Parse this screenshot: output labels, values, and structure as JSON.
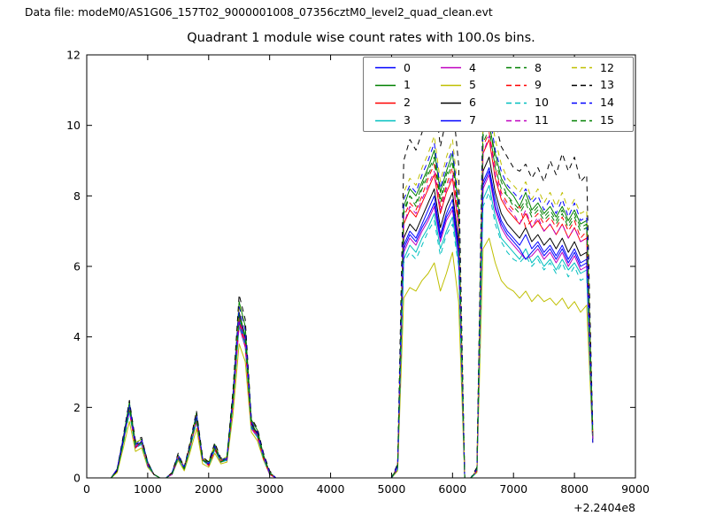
{
  "header": {
    "data_file": "Data file: modeM0/AS1G06_157T02_9000001008_07356cztM0_level2_quad_clean.evt"
  },
  "chart_data": {
    "type": "line",
    "title": "Quadrant 1 module wise count rates with 100.0s bins.",
    "xlabel": "",
    "ylabel": "",
    "x_offset_label": "+2.2404e8",
    "xlim": [
      0,
      9000
    ],
    "ylim": [
      0,
      12
    ],
    "xticks": [
      0,
      1000,
      2000,
      3000,
      4000,
      5000,
      6000,
      7000,
      8000,
      9000
    ],
    "yticks": [
      0,
      2,
      4,
      6,
      8,
      10,
      12
    ],
    "grid": false,
    "legend_position": "upper right",
    "legend_columns": 4,
    "x": [
      400,
      500,
      600,
      700,
      800,
      900,
      1000,
      1100,
      1200,
      1300,
      1400,
      1500,
      1600,
      1700,
      1800,
      1900,
      2000,
      2100,
      2200,
      2300,
      2400,
      2500,
      2600,
      2700,
      2800,
      2900,
      3000,
      3100,
      5000,
      5100,
      5200,
      5300,
      5400,
      5500,
      5600,
      5700,
      5800,
      5900,
      6000,
      6100,
      6200,
      6300,
      6400,
      6500,
      6600,
      6700,
      6800,
      6900,
      7000,
      7100,
      7200,
      7300,
      7400,
      7500,
      7600,
      7700,
      7800,
      7900,
      8000,
      8100,
      8200,
      8300
    ],
    "series": [
      {
        "name": "0",
        "color": "#0000ff",
        "dash": false,
        "values": [
          0,
          0.2,
          1.0,
          2.0,
          0.9,
          1.0,
          0.4,
          0.1,
          0,
          0,
          0.1,
          0.6,
          0.25,
          0.9,
          1.7,
          0.5,
          0.4,
          0.85,
          0.45,
          0.55,
          2.2,
          4.6,
          4.0,
          1.5,
          1.25,
          0.6,
          0.15,
          0,
          0,
          0.3,
          6.6,
          7.0,
          6.8,
          7.2,
          7.6,
          8.0,
          6.9,
          7.5,
          7.9,
          6.5,
          0,
          0,
          0.2,
          8.4,
          8.8,
          7.9,
          7.3,
          7.0,
          6.8,
          6.6,
          6.9,
          6.5,
          6.7,
          6.4,
          6.6,
          6.3,
          6.6,
          6.2,
          6.5,
          6.1,
          6.2,
          1.1
        ]
      },
      {
        "name": "1",
        "color": "#008000",
        "dash": false,
        "values": [
          0,
          0.25,
          1.15,
          2.15,
          1.0,
          1.1,
          0.45,
          0.1,
          0,
          0,
          0.15,
          0.65,
          0.3,
          1.0,
          1.85,
          0.55,
          0.45,
          0.95,
          0.5,
          0.6,
          2.4,
          5.0,
          4.3,
          1.65,
          1.35,
          0.65,
          0.15,
          0,
          0,
          0.3,
          7.7,
          8.2,
          8.0,
          8.4,
          8.8,
          9.3,
          8.1,
          8.7,
          9.2,
          7.6,
          0,
          0,
          0.2,
          9.9,
          10.0,
          9.2,
          8.5,
          8.2,
          8.0,
          7.7,
          8.1,
          7.6,
          7.8,
          7.5,
          7.7,
          7.4,
          7.7,
          7.3,
          7.6,
          7.2,
          7.3,
          1.2
        ]
      },
      {
        "name": "2",
        "color": "#ff0000",
        "dash": false,
        "values": [
          0,
          0.25,
          1.1,
          1.9,
          0.85,
          1.05,
          0.35,
          0.1,
          0,
          0,
          0.1,
          0.55,
          0.3,
          0.95,
          1.6,
          0.55,
          0.35,
          0.8,
          0.5,
          0.5,
          2.1,
          4.4,
          3.8,
          1.45,
          1.2,
          0.55,
          0.1,
          0,
          0,
          0.3,
          7.2,
          7.6,
          7.4,
          7.8,
          8.2,
          8.6,
          7.5,
          8.1,
          8.5,
          7.1,
          0,
          0,
          0.2,
          9.2,
          9.6,
          8.5,
          7.9,
          7.6,
          7.4,
          7.2,
          7.5,
          7.1,
          7.3,
          7.0,
          7.2,
          6.9,
          7.2,
          6.8,
          7.1,
          6.7,
          6.8,
          1.1
        ]
      },
      {
        "name": "3",
        "color": "#00bfbf",
        "dash": false,
        "values": [
          0,
          0.2,
          1.0,
          1.95,
          0.9,
          0.95,
          0.4,
          0.1,
          0,
          0,
          0.1,
          0.6,
          0.25,
          0.85,
          1.65,
          0.5,
          0.4,
          0.8,
          0.45,
          0.5,
          2.15,
          4.5,
          3.9,
          1.5,
          1.2,
          0.6,
          0.1,
          0,
          0,
          0.25,
          6.2,
          6.6,
          6.4,
          6.8,
          7.1,
          7.5,
          6.5,
          7.0,
          7.4,
          6.1,
          0,
          0,
          0.2,
          7.9,
          8.3,
          7.4,
          6.8,
          6.6,
          6.4,
          6.2,
          6.5,
          6.1,
          6.3,
          6.0,
          6.2,
          5.9,
          6.2,
          5.9,
          6.1,
          5.8,
          5.9,
          1.0
        ]
      },
      {
        "name": "4",
        "color": "#bf00bf",
        "dash": false,
        "values": [
          0,
          0.25,
          1.05,
          1.9,
          0.85,
          1.0,
          0.35,
          0.1,
          0,
          0,
          0.1,
          0.55,
          0.25,
          0.9,
          1.6,
          0.5,
          0.35,
          0.8,
          0.45,
          0.5,
          2.1,
          4.3,
          3.7,
          1.4,
          1.15,
          0.55,
          0.1,
          0,
          0,
          0.25,
          6.4,
          6.8,
          6.6,
          7.0,
          7.3,
          7.7,
          6.7,
          7.3,
          7.6,
          6.3,
          0,
          0,
          0.2,
          8.2,
          8.6,
          7.6,
          7.1,
          6.8,
          6.6,
          6.4,
          6.2,
          6.3,
          6.5,
          6.2,
          6.4,
          6.1,
          6.4,
          6.0,
          6.3,
          5.9,
          6.0,
          1.0
        ]
      },
      {
        "name": "5",
        "color": "#bfbf00",
        "dash": false,
        "values": [
          0,
          0.15,
          0.85,
          1.6,
          0.75,
          0.85,
          0.3,
          0.1,
          0,
          0,
          0.1,
          0.5,
          0.2,
          0.75,
          1.4,
          0.4,
          0.3,
          0.7,
          0.4,
          0.45,
          1.8,
          3.8,
          3.3,
          1.3,
          1.05,
          0.5,
          0.1,
          0,
          0,
          0.2,
          5.1,
          5.4,
          5.3,
          5.6,
          5.8,
          6.1,
          5.3,
          5.8,
          6.4,
          5.0,
          0,
          0,
          0.15,
          6.5,
          6.8,
          6.1,
          5.6,
          5.4,
          5.3,
          5.1,
          5.3,
          5.0,
          5.2,
          5.0,
          5.1,
          4.9,
          5.1,
          4.8,
          5.0,
          4.7,
          4.9,
          1.0
        ]
      },
      {
        "name": "6",
        "color": "#000000",
        "dash": false,
        "values": [
          0,
          0.2,
          1.05,
          2.0,
          0.95,
          1.0,
          0.4,
          0.1,
          0,
          0,
          0.1,
          0.6,
          0.3,
          0.9,
          1.7,
          0.55,
          0.4,
          0.85,
          0.5,
          0.55,
          2.2,
          4.7,
          4.0,
          1.55,
          1.25,
          0.6,
          0.15,
          0,
          0,
          0.3,
          6.8,
          7.2,
          7.0,
          7.4,
          7.8,
          8.2,
          7.1,
          7.7,
          8.1,
          6.7,
          0,
          0,
          0.2,
          8.7,
          9.1,
          8.1,
          7.5,
          7.2,
          7.0,
          6.8,
          7.1,
          6.7,
          6.9,
          6.6,
          6.8,
          6.5,
          6.8,
          6.4,
          6.7,
          6.3,
          6.4,
          1.1
        ]
      },
      {
        "name": "7",
        "color": "#0000ff",
        "dash": false,
        "values": [
          0,
          0.25,
          1.1,
          1.95,
          0.85,
          1.05,
          0.35,
          0.1,
          0,
          0,
          0.1,
          0.55,
          0.3,
          0.95,
          1.65,
          0.55,
          0.35,
          0.8,
          0.5,
          0.5,
          2.15,
          4.45,
          3.85,
          1.45,
          1.2,
          0.55,
          0.1,
          0,
          0,
          0.25,
          6.5,
          6.9,
          6.7,
          7.1,
          7.4,
          7.8,
          6.8,
          7.4,
          7.7,
          6.4,
          0,
          0,
          0.2,
          8.3,
          8.7,
          7.7,
          7.2,
          6.9,
          6.7,
          6.5,
          6.2,
          6.4,
          6.6,
          6.3,
          6.5,
          6.2,
          6.5,
          6.1,
          6.4,
          6.0,
          6.1,
          1.0
        ]
      },
      {
        "name": "8",
        "color": "#008000",
        "dash": true,
        "values": [
          0,
          0.2,
          1.0,
          2.05,
          0.9,
          1.0,
          0.4,
          0.1,
          0,
          0,
          0.1,
          0.6,
          0.25,
          0.9,
          1.75,
          0.5,
          0.4,
          0.85,
          0.45,
          0.55,
          2.25,
          4.65,
          4.05,
          1.5,
          1.25,
          0.6,
          0.15,
          0,
          0,
          0.3,
          7.5,
          8.0,
          7.7,
          8.2,
          8.6,
          9.0,
          7.8,
          8.5,
          8.9,
          7.4,
          0,
          0,
          0.2,
          9.5,
          9.9,
          8.8,
          8.2,
          8.0,
          7.7,
          7.5,
          7.8,
          7.4,
          7.6,
          7.3,
          7.5,
          7.2,
          7.5,
          7.1,
          7.4,
          7.0,
          7.1,
          1.2
        ]
      },
      {
        "name": "9",
        "color": "#ff0000",
        "dash": true,
        "values": [
          0,
          0.25,
          1.1,
          1.9,
          0.85,
          1.05,
          0.35,
          0.1,
          0,
          0,
          0.1,
          0.55,
          0.3,
          0.95,
          1.6,
          0.55,
          0.35,
          0.8,
          0.5,
          0.5,
          2.1,
          4.5,
          3.8,
          1.45,
          1.2,
          0.55,
          0.1,
          0,
          0,
          0.3,
          7.4,
          7.8,
          7.6,
          8.0,
          8.5,
          8.9,
          7.7,
          8.3,
          8.8,
          7.3,
          0,
          0,
          0.2,
          9.4,
          9.8,
          8.8,
          8.1,
          7.8,
          7.6,
          7.7,
          7.1,
          7.3,
          7.5,
          7.2,
          7.4,
          7.1,
          7.4,
          7.0,
          7.3,
          6.8,
          7.0,
          1.2
        ]
      },
      {
        "name": "10",
        "color": "#00bfbf",
        "dash": true,
        "values": [
          0,
          0.2,
          0.95,
          1.85,
          0.85,
          0.95,
          0.35,
          0.1,
          0,
          0,
          0.1,
          0.55,
          0.25,
          0.85,
          1.6,
          0.5,
          0.35,
          0.8,
          0.45,
          0.5,
          2.05,
          4.35,
          3.75,
          1.4,
          1.15,
          0.55,
          0.1,
          0,
          0,
          0.25,
          6.1,
          6.4,
          6.2,
          6.6,
          7.0,
          7.3,
          6.3,
          6.9,
          7.2,
          6.0,
          0,
          0,
          0.15,
          7.7,
          8.1,
          7.2,
          6.7,
          6.4,
          6.2,
          6.1,
          6.3,
          6.0,
          6.2,
          5.9,
          6.1,
          5.8,
          6.1,
          5.7,
          6.0,
          5.6,
          5.7,
          1.0
        ]
      },
      {
        "name": "11",
        "color": "#bf00bf",
        "dash": true,
        "values": [
          0,
          0.25,
          1.05,
          1.95,
          0.9,
          1.0,
          0.4,
          0.1,
          0,
          0,
          0.1,
          0.6,
          0.3,
          0.9,
          1.65,
          0.5,
          0.4,
          0.85,
          0.5,
          0.55,
          2.15,
          4.55,
          3.9,
          1.5,
          1.2,
          0.6,
          0.1,
          0,
          0,
          0.3,
          7.2,
          7.7,
          7.5,
          7.9,
          8.3,
          8.7,
          7.6,
          8.2,
          8.6,
          7.1,
          0,
          0,
          0.2,
          9.2,
          9.7,
          8.6,
          8.0,
          7.7,
          7.5,
          7.2,
          7.6,
          7.1,
          7.4,
          7.0,
          7.2,
          6.9,
          7.2,
          6.8,
          7.1,
          6.7,
          6.8,
          1.1
        ]
      },
      {
        "name": "12",
        "color": "#bfbf00",
        "dash": true,
        "values": [
          0,
          0.25,
          1.15,
          2.1,
          1.0,
          1.1,
          0.45,
          0.1,
          0,
          0,
          0.15,
          0.65,
          0.3,
          1.0,
          1.8,
          0.55,
          0.45,
          0.95,
          0.5,
          0.6,
          2.35,
          4.9,
          4.25,
          1.6,
          1.35,
          0.65,
          0.15,
          0,
          0,
          0.35,
          8.1,
          8.5,
          8.3,
          8.8,
          9.2,
          9.7,
          8.4,
          9.1,
          9.6,
          8.0,
          0,
          0,
          0.25,
          10.3,
          10.6,
          9.6,
          8.9,
          8.5,
          8.3,
          8.1,
          8.4,
          7.9,
          8.2,
          7.8,
          8.1,
          7.7,
          8.1,
          7.6,
          7.9,
          7.5,
          7.6,
          1.3
        ]
      },
      {
        "name": "13",
        "color": "#000000",
        "dash": true,
        "values": [
          0,
          0.25,
          1.2,
          2.2,
          1.05,
          1.15,
          0.45,
          0.1,
          0,
          0,
          0.15,
          0.7,
          0.3,
          1.05,
          1.9,
          0.6,
          0.45,
          1.0,
          0.55,
          0.6,
          2.5,
          5.2,
          4.5,
          1.7,
          1.4,
          0.7,
          0.2,
          0,
          0,
          0.4,
          9.0,
          9.6,
          9.3,
          9.8,
          10.3,
          10.9,
          9.4,
          10.2,
          10.7,
          8.9,
          0,
          0,
          0.3,
          10.8,
          11.1,
          10.1,
          9.4,
          9.1,
          8.8,
          8.7,
          8.9,
          8.5,
          8.8,
          8.4,
          9.0,
          8.6,
          9.2,
          8.7,
          9.1,
          8.4,
          8.6,
          1.4
        ]
      },
      {
        "name": "14",
        "color": "#0000ff",
        "dash": true,
        "values": [
          0,
          0.25,
          1.1,
          2.1,
          0.95,
          1.1,
          0.45,
          0.1,
          0,
          0,
          0.15,
          0.65,
          0.3,
          0.95,
          1.8,
          0.55,
          0.4,
          0.9,
          0.5,
          0.55,
          2.3,
          4.85,
          4.2,
          1.6,
          1.3,
          0.65,
          0.15,
          0,
          0,
          0.35,
          7.9,
          8.3,
          8.1,
          8.6,
          9.0,
          9.5,
          8.2,
          8.9,
          9.3,
          7.8,
          0,
          0,
          0.25,
          10.0,
          10.4,
          9.3,
          8.7,
          8.3,
          8.1,
          7.9,
          8.2,
          7.8,
          8.0,
          7.6,
          7.9,
          7.5,
          7.9,
          7.4,
          7.8,
          7.3,
          7.4,
          1.3
        ]
      },
      {
        "name": "15",
        "color": "#008000",
        "dash": true,
        "values": [
          0,
          0.2,
          1.0,
          2.0,
          0.9,
          1.0,
          0.4,
          0.1,
          0,
          0,
          0.1,
          0.6,
          0.25,
          0.9,
          1.7,
          0.5,
          0.4,
          0.85,
          0.45,
          0.55,
          2.2,
          4.6,
          4.0,
          1.5,
          1.25,
          0.6,
          0.15,
          0,
          0,
          0.3,
          7.6,
          8.0,
          7.8,
          8.3,
          8.7,
          9.1,
          7.9,
          8.6,
          9.0,
          7.5,
          0,
          0,
          0.2,
          9.7,
          10.1,
          9.0,
          8.4,
          8.0,
          7.8,
          7.6,
          7.9,
          7.5,
          7.7,
          7.4,
          7.6,
          7.3,
          7.6,
          7.2,
          7.5,
          7.1,
          7.2,
          1.2
        ]
      }
    ]
  }
}
